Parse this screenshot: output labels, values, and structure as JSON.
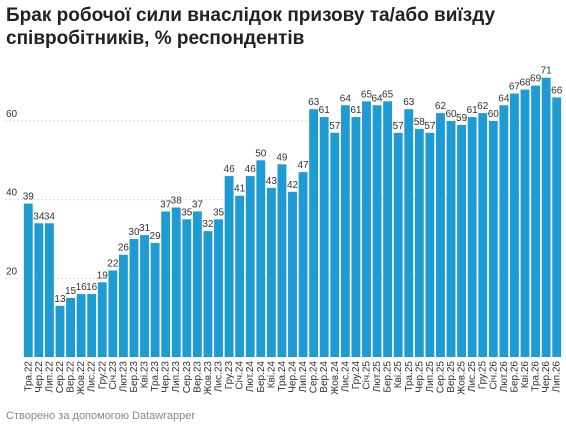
{
  "chart_data": {
    "type": "bar",
    "title": "Брак робочої сили внаслідок призову та/або виїзду співробітників, % респондентів",
    "footer": "Створено за допомогою Datawrapper",
    "categories": [
      "Тра.22",
      "Чер.22",
      "Лип.22",
      "Сер.22",
      "Вер.22",
      "Жов.22",
      "Лис.22",
      "Гру.22",
      "Січ.23",
      "Лют.23",
      "Бер.23",
      "Кві.23",
      "Тра.23",
      "Чер.23",
      "Лип.23",
      "Сер.23",
      "Вер.23",
      "Жов.23",
      "Лис.23",
      "Гру.23",
      "Січ.24",
      "Лют.24",
      "Бер.24",
      "Кві.24",
      "Тра.24",
      "Чер.24",
      "Лип.24",
      "Сер.24",
      "Вер.24",
      "Жов.24",
      "Лис.24",
      "Гру.24",
      "Січ.25",
      "Лют.25",
      "Бер.25",
      "Кві.25",
      "Тра.25",
      "Чер.25",
      "Лип.25",
      "Сер.25",
      "Вер.25",
      "Жов.25",
      "Лис.25",
      "Гру.25",
      "Січ.26",
      "Лют.26",
      "Бер.26",
      "Кві.26",
      "Тра.26",
      "Чер.26",
      "Лип.26"
    ],
    "values": [
      39,
      34,
      34,
      13,
      15,
      16,
      16,
      19,
      22,
      26,
      30,
      31,
      29,
      37,
      38,
      35,
      37,
      32,
      35,
      46,
      41,
      46,
      50,
      43,
      49,
      42,
      47,
      63,
      61,
      57,
      64,
      61,
      65,
      64,
      65,
      57,
      63,
      58,
      57,
      62,
      60,
      59,
      61,
      62,
      60,
      64,
      67,
      68,
      69,
      71,
      66
    ],
    "color": "#1f9bd4",
    "ylim": [
      0,
      75
    ],
    "yticks": [
      20,
      40,
      60
    ],
    "grid": true
  }
}
